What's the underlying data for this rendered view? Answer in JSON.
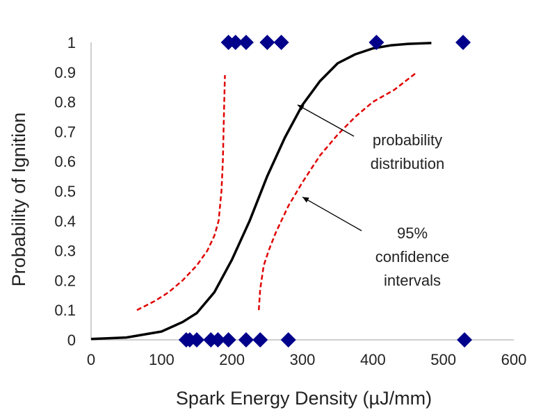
{
  "chart_data": {
    "type": "scatter",
    "xlabel": "Spark Energy Density (µJ/mm)",
    "ylabel": "Probability of Ignition",
    "xlim": [
      0,
      600
    ],
    "ylim": [
      0,
      1
    ],
    "x_ticks": [
      "0",
      "100",
      "200",
      "300",
      "400",
      "500",
      "600"
    ],
    "y_ticks": [
      "0",
      "0.1",
      "0.2",
      "0.3",
      "0.4",
      "0.5",
      "0.6",
      "0.7",
      "0.8",
      "0.9",
      "1"
    ],
    "grid": false,
    "series": [
      {
        "kind": "points",
        "marker": "diamond",
        "color": "#00008B",
        "points": [
          [
            135,
            0
          ],
          [
            140,
            0
          ],
          [
            150,
            0
          ],
          [
            170,
            0
          ],
          [
            180,
            0
          ],
          [
            195,
            0
          ],
          [
            220,
            0
          ],
          [
            240,
            0
          ],
          [
            280,
            0
          ],
          [
            530,
            0
          ],
          [
            195,
            1
          ],
          [
            205,
            1
          ],
          [
            220,
            1
          ],
          [
            250,
            1
          ],
          [
            270,
            1
          ],
          [
            405,
            1
          ],
          [
            528,
            1
          ]
        ]
      },
      {
        "kind": "curve",
        "style": "solid",
        "color": "#000000",
        "points": [
          [
            0,
            0.003
          ],
          [
            50,
            0.008
          ],
          [
            100,
            0.028
          ],
          [
            130,
            0.06
          ],
          [
            150,
            0.09
          ],
          [
            175,
            0.16
          ],
          [
            200,
            0.27
          ],
          [
            225,
            0.4
          ],
          [
            250,
            0.55
          ],
          [
            275,
            0.68
          ],
          [
            300,
            0.79
          ],
          [
            325,
            0.87
          ],
          [
            350,
            0.93
          ],
          [
            375,
            0.96
          ],
          [
            400,
            0.98
          ],
          [
            425,
            0.99
          ],
          [
            450,
            0.995
          ],
          [
            483,
            0.998
          ]
        ]
      },
      {
        "kind": "curve",
        "style": "dashed",
        "color": "#E00000",
        "points": [
          [
            65,
            0.1
          ],
          [
            90,
            0.13
          ],
          [
            110,
            0.16
          ],
          [
            130,
            0.2
          ],
          [
            150,
            0.25
          ],
          [
            165,
            0.3
          ],
          [
            175,
            0.35
          ],
          [
            181,
            0.4
          ],
          [
            185,
            0.5
          ],
          [
            187,
            0.6
          ],
          [
            188,
            0.7
          ],
          [
            189,
            0.8
          ],
          [
            190,
            0.89
          ]
        ]
      },
      {
        "kind": "curve",
        "style": "dashed",
        "color": "#E00000",
        "points": [
          [
            238,
            0.1
          ],
          [
            240,
            0.17
          ],
          [
            245,
            0.25
          ],
          [
            252,
            0.3
          ],
          [
            262,
            0.36
          ],
          [
            280,
            0.45
          ],
          [
            300,
            0.53
          ],
          [
            325,
            0.62
          ],
          [
            350,
            0.69
          ],
          [
            375,
            0.75
          ],
          [
            400,
            0.8
          ],
          [
            430,
            0.84
          ],
          [
            460,
            0.895
          ]
        ]
      }
    ],
    "annotations": [
      {
        "lines": [
          "probability",
          "distribution"
        ],
        "arrow_to": [
          293,
          0.79
        ]
      },
      {
        "lines": [
          "95%",
          "confidence",
          "intervals"
        ],
        "arrow_to": [
          300,
          0.48
        ]
      }
    ]
  }
}
